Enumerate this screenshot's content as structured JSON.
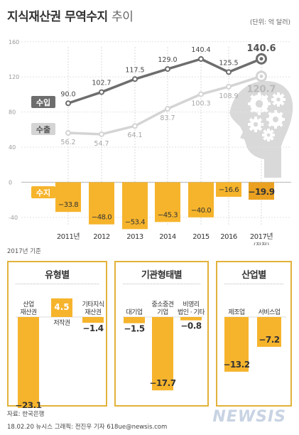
{
  "header": {
    "title_bold": "지식재산권 무역수지",
    "title_light": "추이",
    "unit": "(단위: 억 달러)"
  },
  "labels": {
    "imports": "수입",
    "exports": "수출",
    "balance": "수지",
    "basis": "2017년 기준"
  },
  "chart_data": {
    "type": "line",
    "categories": [
      "2011년",
      "2012",
      "2013",
      "2014",
      "2015",
      "2016",
      "2017년"
    ],
    "category_note": "(잠정)",
    "category_note_index": 6,
    "ylim": [
      -40,
      160
    ],
    "yticks": [
      -40,
      0,
      40,
      80,
      120,
      160
    ],
    "series": [
      {
        "name": "수입",
        "values": [
          90.0,
          102.7,
          117.5,
          129.0,
          140.4,
          125.5,
          140.6
        ],
        "color": "#6d6d6d"
      },
      {
        "name": "수출",
        "values": [
          56.2,
          54.7,
          64.1,
          83.7,
          100.3,
          108.9,
          120.7
        ],
        "color": "#d4d4d4"
      },
      {
        "name": "수지",
        "values": [
          -33.8,
          -48.0,
          -53.4,
          -45.3,
          -40.0,
          -16.6,
          -19.9
        ],
        "color": "#f6b42c"
      }
    ]
  },
  "breakdown": [
    {
      "title": "유형별",
      "bars": [
        {
          "label": [
            "산업",
            "재산권"
          ],
          "value": -23.1
        },
        {
          "label": [
            "저작권"
          ],
          "value": 4.5
        },
        {
          "label": [
            "기타지식",
            "재산권"
          ],
          "value": -1.4
        }
      ]
    },
    {
      "title": "기관형태별",
      "bars": [
        {
          "label": [
            "대기업"
          ],
          "value": -1.5
        },
        {
          "label": [
            "중소중견",
            "기업"
          ],
          "value": -17.7
        },
        {
          "label": [
            "비영리",
            "법인 · 기타"
          ],
          "value": -0.8
        }
      ]
    },
    {
      "title": "산업별",
      "bars": [
        {
          "label": [
            "제조업"
          ],
          "value": -13.2
        },
        {
          "label": [
            "서비스업"
          ],
          "value": -7.2
        }
      ]
    }
  ],
  "footer": {
    "source": "자료: 한국은행",
    "credit": "18.02.20 뉴시스 그래픽: 전진우 기자 618ue@newsis.com",
    "logo": "NEWSIS"
  }
}
